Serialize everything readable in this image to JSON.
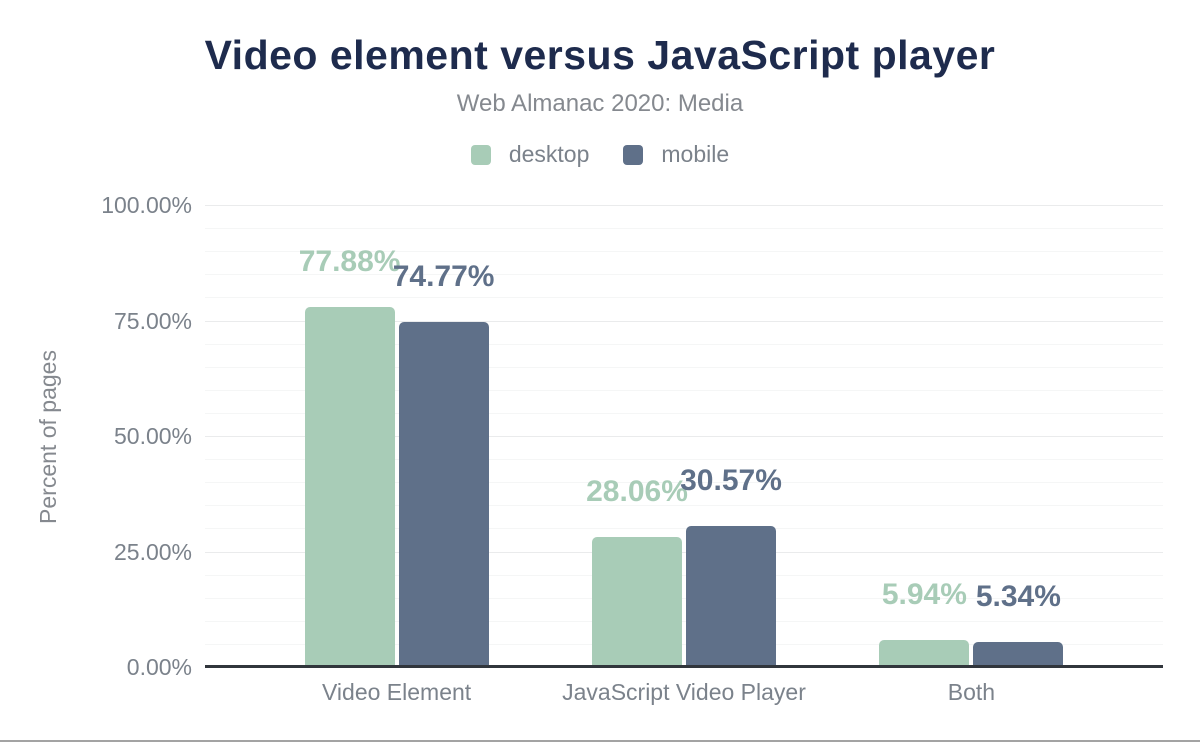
{
  "chart_data": {
    "type": "bar",
    "title": "Video element versus JavaScript player",
    "subtitle": "Web Almanac 2020: Media",
    "categories": [
      "Video Element",
      "JavaScript Video Player",
      "Both"
    ],
    "series": [
      {
        "name": "desktop",
        "color": "#a8ccb7",
        "values": [
          77.88,
          28.06,
          5.94
        ],
        "data_labels": [
          "77.88%",
          "28.06%",
          "5.94%"
        ]
      },
      {
        "name": "mobile",
        "color": "#5f7089",
        "values": [
          74.77,
          30.57,
          5.34
        ],
        "data_labels": [
          "74.77%",
          "30.57%",
          "5.34%"
        ]
      }
    ],
    "xlabel": "",
    "ylabel": "Percent of pages",
    "ylim": [
      0,
      100
    ],
    "yticks": [
      {
        "value": 0,
        "label": "0.00%"
      },
      {
        "value": 25,
        "label": "25.00%"
      },
      {
        "value": 50,
        "label": "50.00%"
      },
      {
        "value": 75,
        "label": "75.00%"
      },
      {
        "value": 100,
        "label": "100.00%"
      }
    ],
    "grid": true,
    "minor_gridline_step": 5,
    "major_gridline_step": 25,
    "legend_position": "top"
  },
  "colors": {
    "title": "#1e2b4d",
    "subtitle": "#85898f",
    "axis_text": "#7b828b",
    "gridline_major": "#eaebec",
    "gridline_minor": "#f5f6f6",
    "axis_line": "#31363c",
    "page_bottom_border": "#a3a3a3"
  }
}
